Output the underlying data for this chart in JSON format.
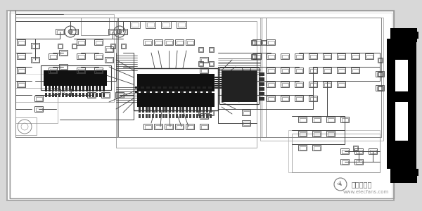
{
  "bg_color": "#d8d8d8",
  "board_bg": "#ffffff",
  "trace_color": "#222222",
  "dark_color": "#000000",
  "connector_color": "#000000",
  "mid_gray": "#888888",
  "light_gray": "#cccccc",
  "watermark_text": "电子发烧友",
  "watermark_url": "www.elecfans.com",
  "watermark_color": "#888888"
}
